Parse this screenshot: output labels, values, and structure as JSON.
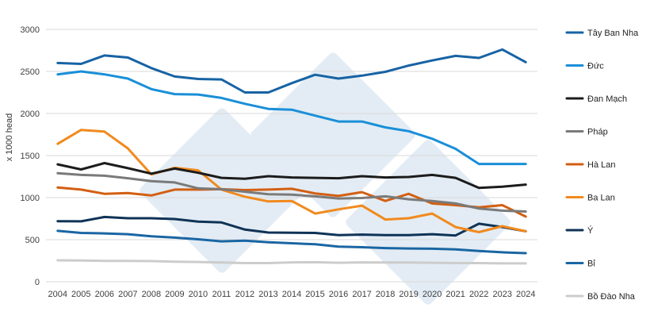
{
  "chart_data": {
    "type": "line",
    "title": "",
    "xlabel": "",
    "ylabel": "x 1000 head",
    "ylim": [
      0,
      3000
    ],
    "yticks": [
      0,
      500,
      1000,
      1500,
      2000,
      2500,
      3000
    ],
    "grid": true,
    "legend_position": "right",
    "x": [
      2004,
      2005,
      2006,
      2007,
      2008,
      2009,
      2010,
      2011,
      2012,
      2013,
      2014,
      2015,
      2016,
      2017,
      2018,
      2019,
      2020,
      2021,
      2022,
      2023,
      2024
    ],
    "series": [
      {
        "name": "Tây Ban Nha",
        "color": "#1763a4",
        "values": [
          2600,
          2590,
          2690,
          2665,
          2540,
          2440,
          2410,
          2405,
          2250,
          2250,
          2360,
          2460,
          2415,
          2450,
          2495,
          2570,
          2630,
          2685,
          2660,
          2760,
          2610
        ]
      },
      {
        "name": "Đức",
        "color": "#1a8fd8",
        "values": [
          2465,
          2500,
          2465,
          2415,
          2290,
          2230,
          2225,
          2185,
          2115,
          2055,
          2045,
          1975,
          1905,
          1905,
          1835,
          1790,
          1700,
          1580,
          1400,
          1400,
          1400
        ]
      },
      {
        "name": "Đan Mạch",
        "color": "#1c1c1c",
        "values": [
          1395,
          1335,
          1410,
          1350,
          1285,
          1345,
          1295,
          1235,
          1225,
          1255,
          1240,
          1235,
          1230,
          1255,
          1240,
          1245,
          1270,
          1235,
          1115,
          1130,
          1155
        ]
      },
      {
        "name": "Pháp",
        "color": "#7a7a7a",
        "values": [
          1290,
          1270,
          1260,
          1230,
          1195,
          1180,
          1110,
          1100,
          1070,
          1040,
          1035,
          1015,
          990,
          995,
          1015,
          980,
          960,
          930,
          870,
          845,
          835
        ]
      },
      {
        "name": "Hà Lan",
        "color": "#d35f12",
        "values": [
          1120,
          1095,
          1045,
          1055,
          1025,
          1095,
          1095,
          1100,
          1090,
          1095,
          1105,
          1050,
          1020,
          1065,
          960,
          1045,
          930,
          910,
          885,
          910,
          775
        ]
      },
      {
        "name": "Ba Lan",
        "color": "#f18a1e",
        "values": [
          1640,
          1805,
          1785,
          1585,
          1275,
          1355,
          1325,
          1095,
          1010,
          955,
          960,
          810,
          860,
          905,
          740,
          755,
          810,
          650,
          590,
          660,
          600
        ]
      },
      {
        "name": "Ý",
        "color": "#0f3356",
        "values": [
          720,
          718,
          770,
          755,
          755,
          745,
          715,
          705,
          620,
          585,
          583,
          580,
          555,
          560,
          555,
          555,
          565,
          550,
          690,
          650,
          600
        ]
      },
      {
        "name": "Bỉ",
        "color": "#1a66a3",
        "values": [
          605,
          580,
          575,
          565,
          540,
          525,
          505,
          480,
          488,
          470,
          458,
          445,
          418,
          410,
          400,
          395,
          392,
          385,
          365,
          350,
          340
        ]
      },
      {
        "name": "Bồ Đào Nha",
        "color": "#cccccc",
        "values": [
          255,
          253,
          248,
          247,
          245,
          238,
          235,
          228,
          222,
          222,
          230,
          232,
          225,
          230,
          228,
          228,
          225,
          222,
          222,
          218,
          218
        ]
      }
    ]
  }
}
